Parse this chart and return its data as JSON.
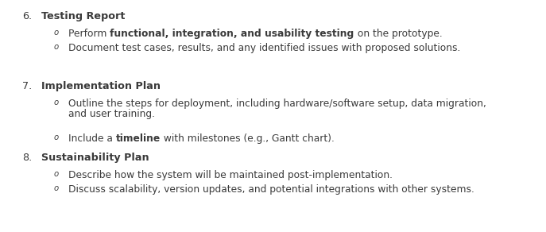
{
  "background_color": "#ffffff",
  "text_color": "#3a3a3a",
  "font_size_heading": 9.2,
  "font_size_body": 8.8,
  "sections": [
    {
      "number": "6.",
      "heading": "Testing Report",
      "bullets": [
        {
          "lines": [
            [
              {
                "text": "Perform ",
                "bold": false
              },
              {
                "text": "functional, integration, and usability testing",
                "bold": true
              },
              {
                "text": " on the prototype.",
                "bold": false
              }
            ]
          ]
        },
        {
          "lines": [
            [
              {
                "text": "Document test cases, results, and any identified issues with proposed solutions.",
                "bold": false
              }
            ]
          ]
        }
      ]
    },
    {
      "number": "7.",
      "heading": "Implementation Plan",
      "bullets": [
        {
          "lines": [
            [
              {
                "text": "Outline the steps for deployment, including hardware/software setup, data migration,",
                "bold": false
              }
            ],
            [
              {
                "text": "and user training.",
                "bold": false
              }
            ]
          ]
        },
        {
          "lines": [
            [
              {
                "text": "Include a ",
                "bold": false
              },
              {
                "text": "timeline",
                "bold": true
              },
              {
                "text": " with milestones (e.g., Gantt chart).",
                "bold": false
              }
            ]
          ]
        }
      ]
    },
    {
      "number": "8.",
      "heading": "Sustainability Plan",
      "bullets": [
        {
          "lines": [
            [
              {
                "text": "Describe how the system will be maintained post-implementation.",
                "bold": false
              }
            ]
          ]
        },
        {
          "lines": [
            [
              {
                "text": "Discuss scalability, version updates, and potential integrations with other systems.",
                "bold": false
              }
            ]
          ]
        }
      ]
    }
  ]
}
